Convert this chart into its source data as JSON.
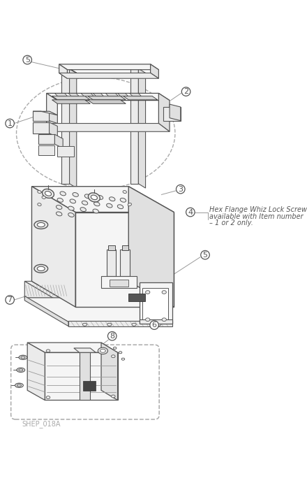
{
  "bg_color": "#ffffff",
  "lc": "#555555",
  "dc": "#333333",
  "ll": "#999999",
  "vl": "#bbbbbb",
  "dash": "#aaaaaa",
  "fc_light": "#f5f5f5",
  "fc_mid": "#ebebeb",
  "fc_dark": "#e0e0e0",
  "fc_darker": "#d5d5d5",
  "annotation_text": [
    "Hex Flange Whiz Lock Screw",
    "available with Item number",
    "– 1 or 2 only."
  ],
  "footer_text": "SHEP_018A",
  "figsize": [
    4.4,
    6.91
  ],
  "dpi": 100
}
